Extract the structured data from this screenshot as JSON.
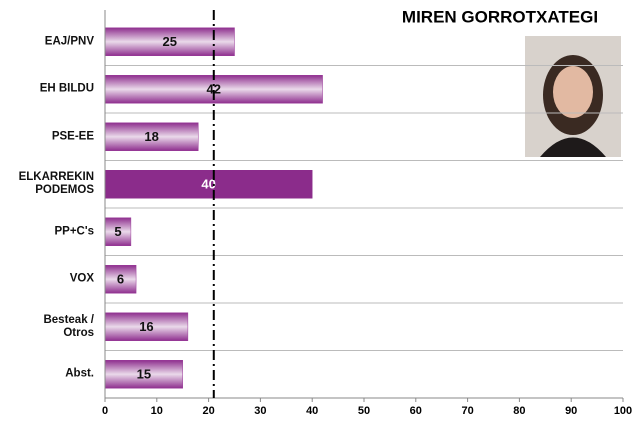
{
  "chart_data": {
    "type": "bar",
    "orientation": "horizontal",
    "title": "MIREN GORROTXATEGI",
    "categories": [
      "EAJ/PNV",
      "EH BILDU",
      "PSE-EE",
      "ELKARREKIN\nPODEMOS",
      "PP+C's",
      "VOX",
      "Besteak /\nOtros",
      "Abst."
    ],
    "values": [
      25,
      42,
      18,
      40,
      5,
      6,
      16,
      15
    ],
    "colors": [
      "#9a3b9a",
      "#9a3b9a",
      "#9a3b9a",
      "#8b2c8b",
      "#9a3b9a",
      "#9a3b9a",
      "#9a3b9a",
      "#9a3b9a"
    ],
    "solid": [
      false,
      false,
      false,
      true,
      false,
      false,
      false,
      false
    ],
    "label_colors": [
      "#111111",
      "#111111",
      "#111111",
      "#ffffff",
      "#111111",
      "#111111",
      "#111111",
      "#111111"
    ],
    "xlim": [
      0,
      100
    ],
    "xticks": [
      0,
      10,
      20,
      30,
      40,
      50,
      60,
      70,
      80,
      90,
      100
    ],
    "reference_line": 21,
    "grid": true
  }
}
